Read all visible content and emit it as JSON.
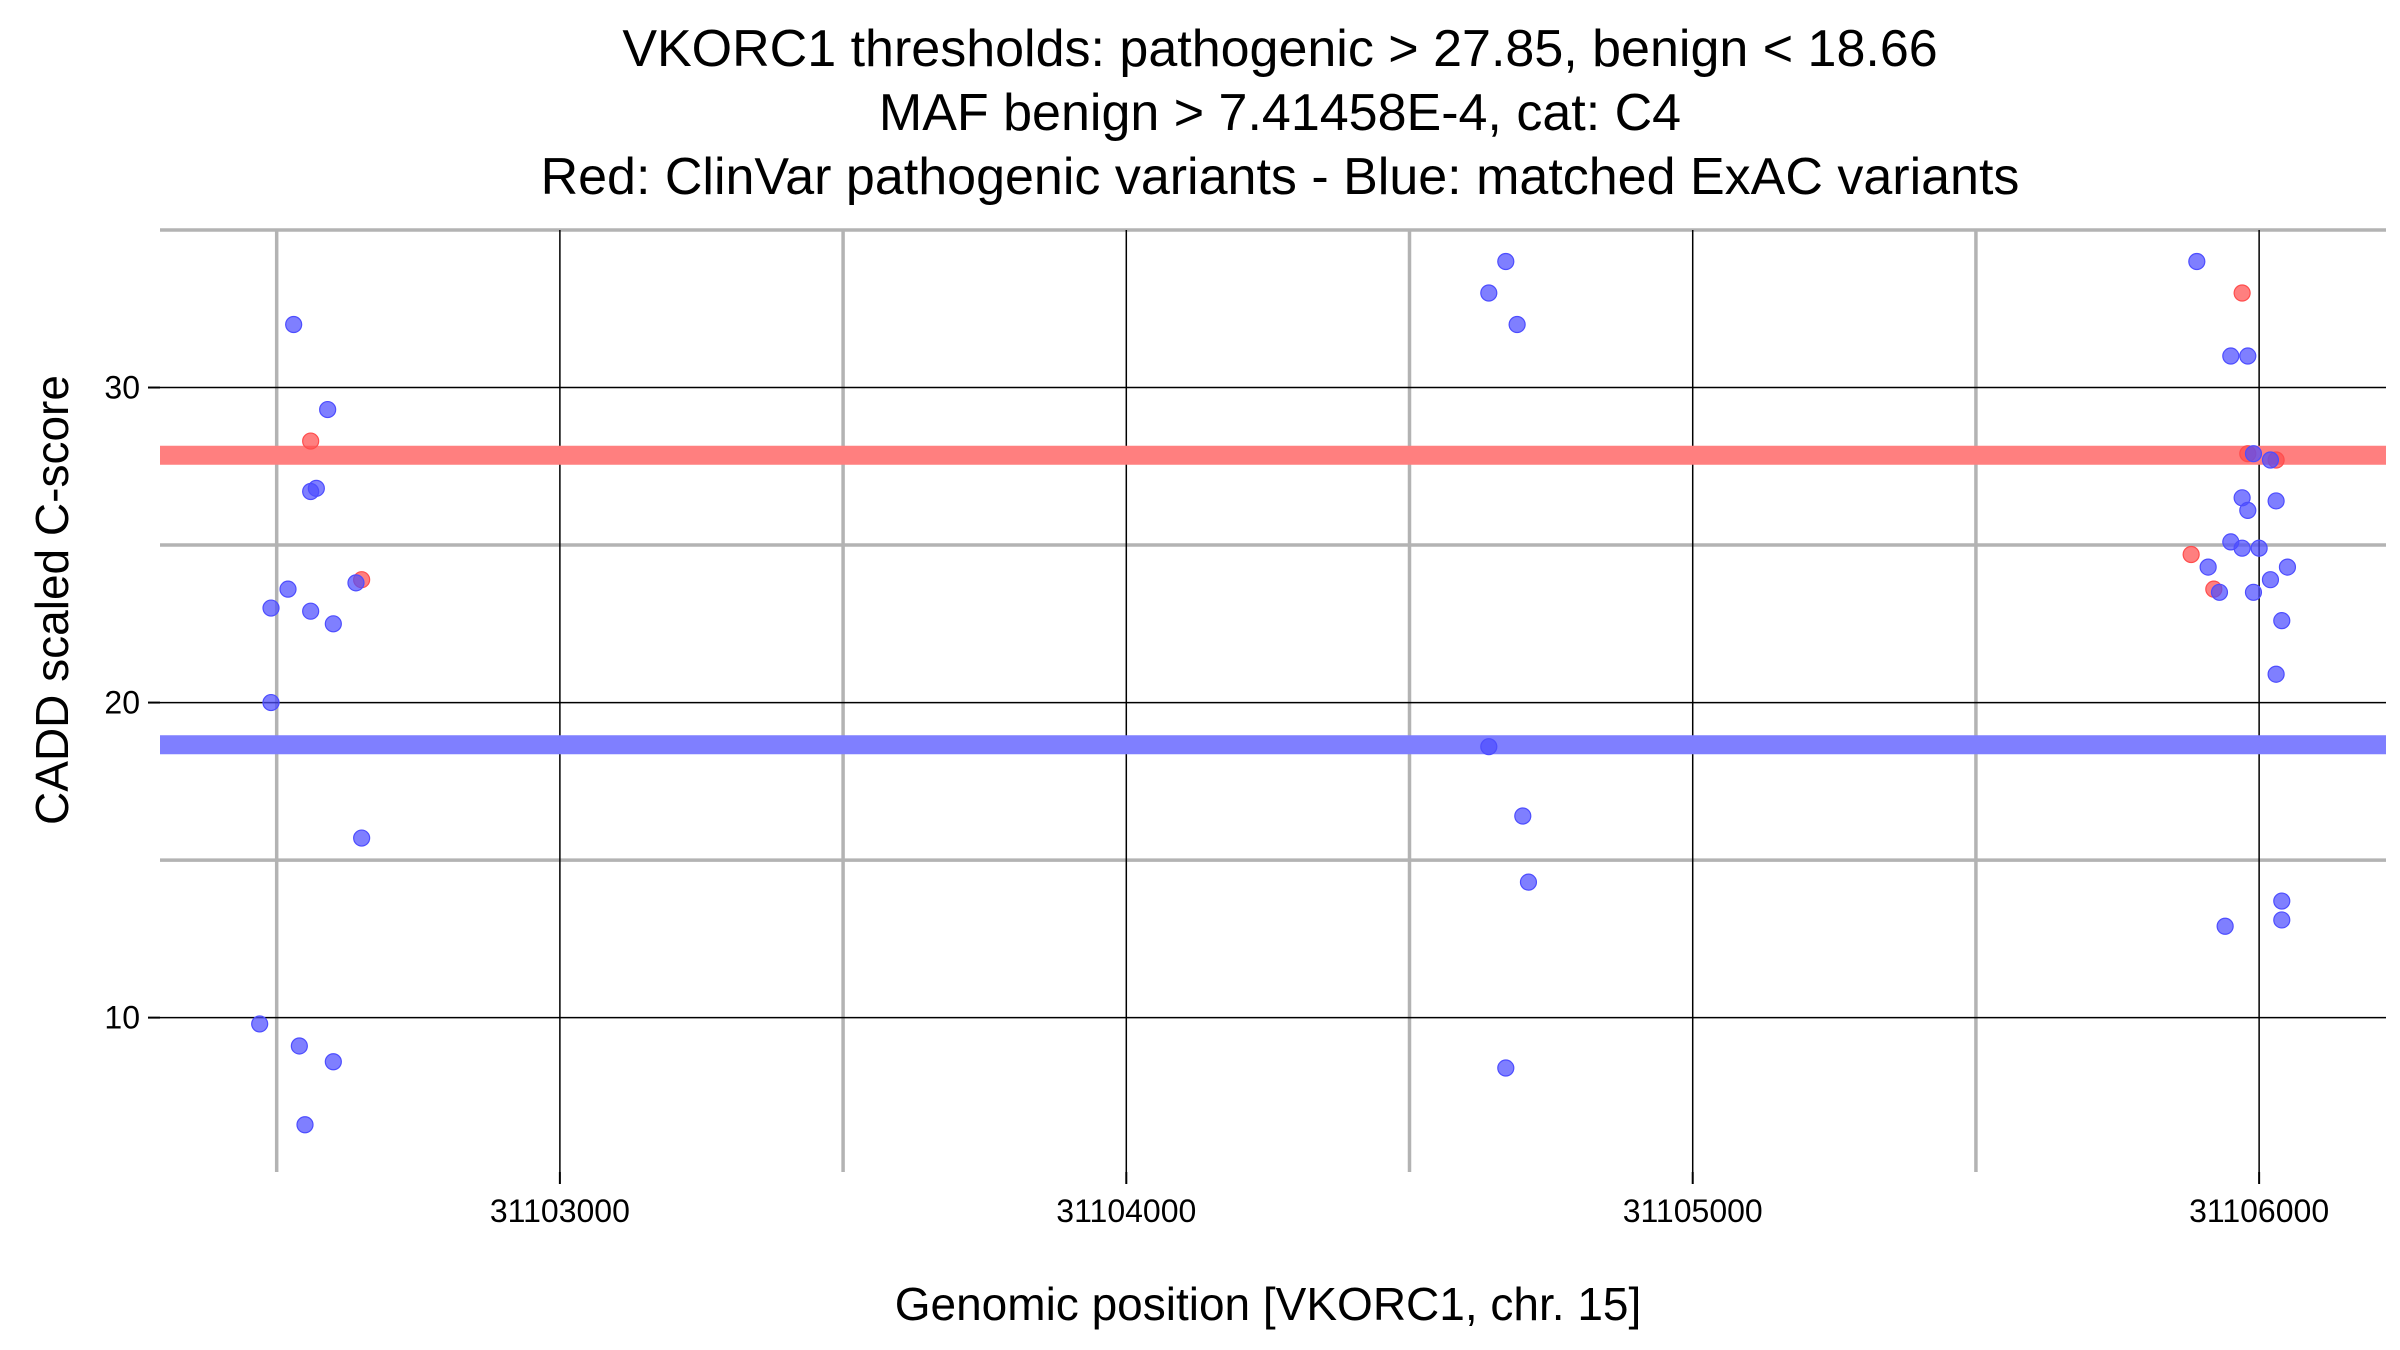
{
  "chart_data": {
    "type": "scatter",
    "title_lines": [
      "VKORC1 thresholds: pathogenic > 27.85, benign < 18.66",
      "MAF benign > 7.41458E-4, cat: C4",
      "Red: ClinVar pathogenic variants - Blue: matched ExAC variants"
    ],
    "xlabel": "Genomic position [VKORC1, chr. 15]",
    "ylabel": "CADD scaled C-score",
    "xlim": [
      31102294,
      31106224
    ],
    "ylim": [
      5.1,
      35.0
    ],
    "x_ticks": [
      31103000,
      31104000,
      31105000,
      31106000
    ],
    "x_tick_labels": [
      "31103000",
      "31104000",
      "31105000",
      "31106000"
    ],
    "x_minor_grid": [
      31102500,
      31103500,
      31104500,
      31105500
    ],
    "y_ticks": [
      10,
      20,
      30
    ],
    "y_tick_labels": [
      "10",
      "20",
      "30"
    ],
    "y_minor_grid": [
      15,
      25,
      35
    ],
    "grid": true,
    "thresholds": [
      {
        "value": 27.85,
        "color": "#ff7f7f"
      },
      {
        "value": 18.66,
        "color": "#7f7fff"
      }
    ],
    "colors": {
      "pathogenic": "#ff4d4d",
      "benign": "#4d4dff"
    },
    "series": [
      {
        "colorKey": "pathogenic",
        "points": [
          [
            31102560,
            28.3
          ],
          [
            31102650,
            23.9
          ],
          [
            31105880,
            24.7
          ],
          [
            31105920,
            23.6
          ],
          [
            31105970,
            33.0
          ],
          [
            31105980,
            27.9
          ],
          [
            31106030,
            27.7
          ]
        ]
      },
      {
        "colorKey": "benign",
        "points": [
          [
            31102530,
            32.0
          ],
          [
            31102590,
            29.3
          ],
          [
            31102570,
            26.8
          ],
          [
            31102560,
            26.7
          ],
          [
            31102520,
            23.6
          ],
          [
            31102490,
            23.0
          ],
          [
            31102560,
            22.9
          ],
          [
            31102600,
            22.5
          ],
          [
            31102640,
            23.8
          ],
          [
            31102490,
            20.0
          ],
          [
            31102650,
            15.7
          ],
          [
            31102470,
            9.8
          ],
          [
            31102540,
            9.1
          ],
          [
            31102600,
            8.6
          ],
          [
            31102550,
            6.6
          ],
          [
            31104670,
            34.0
          ],
          [
            31104640,
            33.0
          ],
          [
            31104690,
            32.0
          ],
          [
            31104640,
            18.6
          ],
          [
            31104700,
            16.4
          ],
          [
            31104710,
            14.3
          ],
          [
            31104670,
            8.4
          ],
          [
            31105890,
            34.0
          ],
          [
            31105950,
            31.0
          ],
          [
            31105980,
            31.0
          ],
          [
            31105990,
            27.9
          ],
          [
            31106020,
            27.7
          ],
          [
            31105970,
            26.5
          ],
          [
            31105980,
            26.1
          ],
          [
            31106030,
            26.4
          ],
          [
            31105950,
            25.1
          ],
          [
            31105970,
            24.9
          ],
          [
            31106000,
            24.9
          ],
          [
            31105910,
            24.3
          ],
          [
            31105930,
            23.5
          ],
          [
            31105990,
            23.5
          ],
          [
            31106020,
            23.9
          ],
          [
            31106050,
            24.3
          ],
          [
            31106040,
            22.6
          ],
          [
            31106030,
            20.9
          ],
          [
            31105940,
            12.9
          ],
          [
            31106040,
            13.7
          ],
          [
            31106040,
            13.1
          ]
        ]
      }
    ]
  }
}
